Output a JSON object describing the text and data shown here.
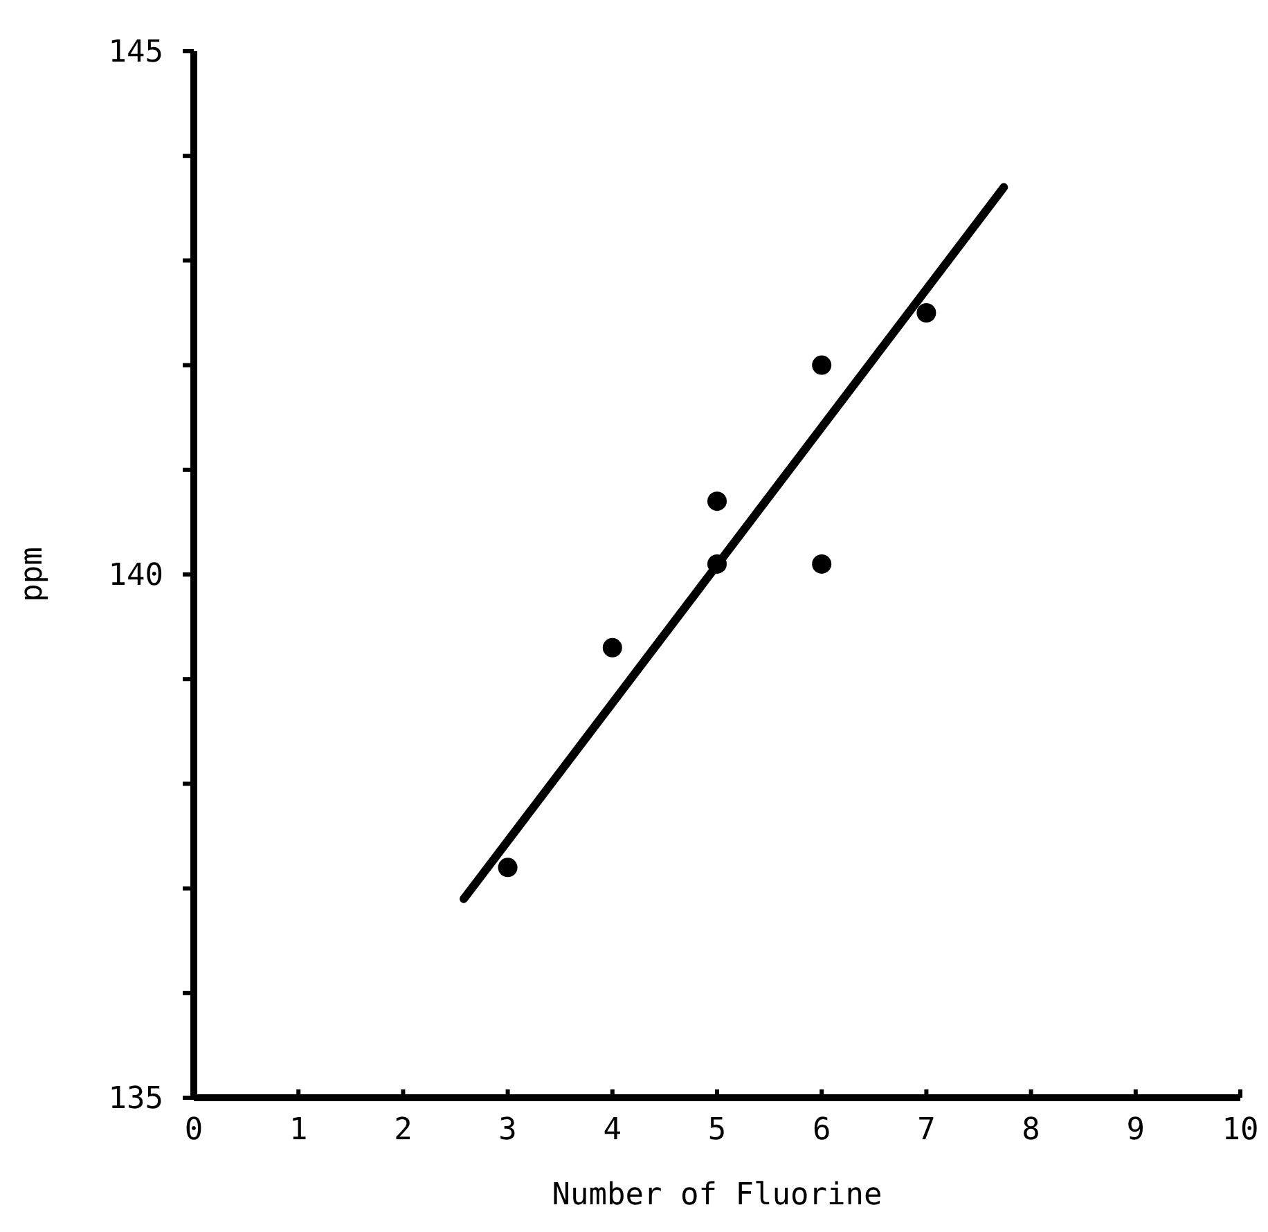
{
  "chart_data": {
    "type": "scatter",
    "xlabel": "Number of Fluorine",
    "ylabel": "ppm",
    "xlim": [
      0,
      10
    ],
    "xticks": [
      0,
      1,
      2,
      3,
      4,
      5,
      6,
      7,
      8,
      9,
      10
    ],
    "ylim": [
      135,
      145
    ],
    "yticks": [
      135,
      {
        "value": 136,
        "label": null
      },
      {
        "value": 137,
        "label": null
      },
      {
        "value": 138,
        "label": null
      },
      {
        "value": 139,
        "label": null
      },
      140,
      {
        "value": 141,
        "label": null
      },
      {
        "value": 142,
        "label": null
      },
      {
        "value": 143,
        "label": null
      },
      {
        "value": 144,
        "label": null
      },
      145
    ],
    "grid": false,
    "marker": "circle",
    "series": [
      {
        "color": "#000000",
        "x": [
          3,
          4,
          5,
          5,
          6,
          6,
          7
        ],
        "values": [
          137.2,
          139.3,
          140.7,
          140.1,
          142.0,
          140.1,
          142.5
        ]
      },
      {
        "type": "line",
        "color": "#000000",
        "marker": "none",
        "line_style": "solid",
        "x": [
          2.58,
          7.74
        ],
        "values": [
          136.9,
          143.7
        ]
      }
    ]
  }
}
